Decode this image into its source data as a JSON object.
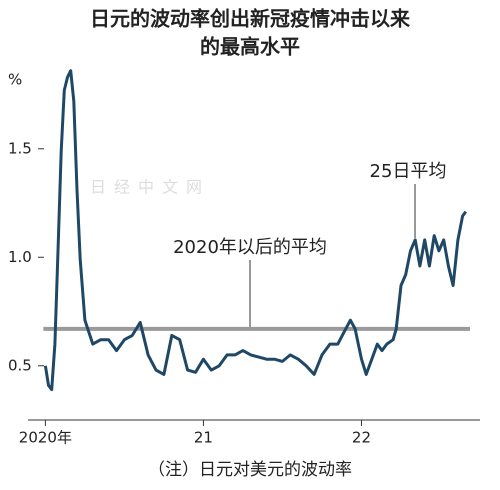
{
  "chart_data": {
    "type": "line",
    "title": [
      "日元的波动率创出新冠疫情冲击以来",
      "的最高水平"
    ],
    "y_unit": "%",
    "note": "（注）日元对美元的波动率",
    "watermark": "日经中文网",
    "annotation": "25日平均",
    "reference_line": {
      "value": 0.67,
      "label": "2020年以后的平均",
      "color": "#9a9a9a"
    },
    "x": [
      2020.0,
      2020.02,
      2020.04,
      2020.06,
      2020.08,
      2020.1,
      2020.12,
      2020.14,
      2020.16,
      2020.18,
      2020.2,
      2020.22,
      2020.25,
      2020.3,
      2020.35,
      2020.4,
      2020.45,
      2020.5,
      2020.55,
      2020.6,
      2020.65,
      2020.7,
      2020.75,
      2020.8,
      2020.85,
      2020.9,
      2020.95,
      2021.0,
      2021.05,
      2021.1,
      2021.15,
      2021.2,
      2021.25,
      2021.3,
      2021.35,
      2021.4,
      2021.45,
      2021.5,
      2021.55,
      2021.6,
      2021.65,
      2021.7,
      2021.75,
      2021.8,
      2021.85,
      2021.9,
      2021.93,
      2021.96,
      2022.0,
      2022.03,
      2022.06,
      2022.1,
      2022.13,
      2022.16,
      2022.2,
      2022.22,
      2022.25,
      2022.28,
      2022.31,
      2022.34,
      2022.37,
      2022.4,
      2022.43,
      2022.46,
      2022.49,
      2022.52,
      2022.55,
      2022.58,
      2022.61,
      2022.64,
      2022.66
    ],
    "series": [
      {
        "name": "25日平均",
        "color": "#1f4866",
        "values": [
          0.5,
          0.41,
          0.39,
          0.6,
          1.03,
          1.49,
          1.77,
          1.83,
          1.86,
          1.72,
          1.31,
          0.99,
          0.71,
          0.6,
          0.62,
          0.62,
          0.57,
          0.62,
          0.64,
          0.7,
          0.55,
          0.48,
          0.46,
          0.64,
          0.62,
          0.48,
          0.47,
          0.53,
          0.48,
          0.5,
          0.55,
          0.55,
          0.57,
          0.55,
          0.54,
          0.53,
          0.53,
          0.52,
          0.55,
          0.53,
          0.5,
          0.46,
          0.55,
          0.6,
          0.6,
          0.67,
          0.71,
          0.67,
          0.53,
          0.46,
          0.52,
          0.6,
          0.57,
          0.6,
          0.62,
          0.67,
          0.87,
          0.92,
          1.03,
          1.08,
          0.96,
          1.08,
          0.96,
          1.1,
          1.03,
          1.08,
          0.96,
          0.87,
          1.08,
          1.19,
          1.21
        ]
      }
    ],
    "xlim": [
      2019.89,
      2022.75
    ],
    "xticks": [
      {
        "value": 2020,
        "label": "2020年"
      },
      {
        "value": 2021,
        "label": "21"
      },
      {
        "value": 2022,
        "label": "22"
      }
    ],
    "ylim": [
      0.25,
      1.9
    ],
    "yticks": [
      0.5,
      {
        "value": 1,
        "label": "1.0"
      },
      1.5
    ]
  }
}
